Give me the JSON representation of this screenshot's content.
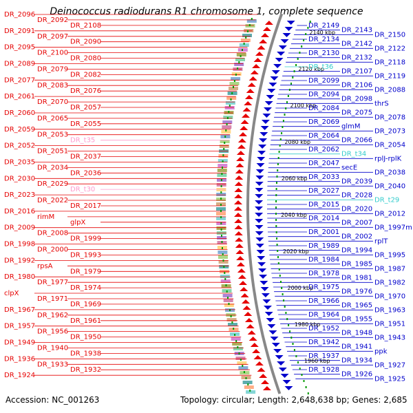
{
  "title": "Deinococcus radiodurans R1 chromosome 1, complete sequence",
  "accession_label": "Accession: NC_001263",
  "topology_label": "Topology: circular; Length: 2,648,638 bp; Genes: 2,685",
  "colors": {
    "left_gene": "#e60000",
    "right_gene": "#0000cc",
    "rna_pink": "#ff99cc",
    "rna_cyan": "#33cccc",
    "backbone": "#888888",
    "tick": "#009900"
  },
  "kbp_labels": [
    "2140 kbp",
    "2120 kbp",
    "2100 kbp",
    "2080 kbp",
    "2060 kbp",
    "2040 kbp",
    "2020 kbp",
    "2000 kbp",
    "1980 kbp",
    "1960 kbp"
  ],
  "left_genes": [
    {
      "label": "DR_2096",
      "kind": "gene"
    },
    {
      "label": "DR_2092",
      "kind": "gene"
    },
    {
      "label": "DR_2108",
      "kind": "gene"
    },
    {
      "label": "DR_2091",
      "kind": "gene"
    },
    {
      "label": "DR_2097",
      "kind": "gene"
    },
    {
      "label": "DR_2090",
      "kind": "gene"
    },
    {
      "label": "DR_2095",
      "kind": "gene"
    },
    {
      "label": "DR_2100",
      "kind": "gene"
    },
    {
      "label": "DR_2080",
      "kind": "gene"
    },
    {
      "label": "DR_2089",
      "kind": "gene"
    },
    {
      "label": "DR_2079",
      "kind": "gene"
    },
    {
      "label": "DR_2082",
      "kind": "gene"
    },
    {
      "label": "DR_2077",
      "kind": "gene"
    },
    {
      "label": "DR_2083",
      "kind": "gene"
    },
    {
      "label": "DR_2076",
      "kind": "gene"
    },
    {
      "label": "DR_2061",
      "kind": "gene"
    },
    {
      "label": "DR_2070",
      "kind": "gene"
    },
    {
      "label": "DR_2057",
      "kind": "gene"
    },
    {
      "label": "DR_2060",
      "kind": "gene"
    },
    {
      "label": "DR_2065",
      "kind": "gene"
    },
    {
      "label": "DR_2055",
      "kind": "gene"
    },
    {
      "label": "DR_2059",
      "kind": "gene"
    },
    {
      "label": "DR_2053",
      "kind": "gene"
    },
    {
      "label": "DR_t35",
      "kind": "rna"
    },
    {
      "label": "DR_2052",
      "kind": "gene"
    },
    {
      "label": "DR_2051",
      "kind": "gene"
    },
    {
      "label": "DR_2037",
      "kind": "gene"
    },
    {
      "label": "DR_2035",
      "kind": "gene"
    },
    {
      "label": "DR_2034",
      "kind": "gene"
    },
    {
      "label": "DR_2036",
      "kind": "gene"
    },
    {
      "label": "DR_2030",
      "kind": "gene"
    },
    {
      "label": "DR_2029",
      "kind": "gene"
    },
    {
      "label": "DR_t30",
      "kind": "rna"
    },
    {
      "label": "DR_2023",
      "kind": "gene"
    },
    {
      "label": "DR_2022",
      "kind": "gene"
    },
    {
      "label": "DR_2017",
      "kind": "gene"
    },
    {
      "label": "DR_2016",
      "kind": "gene"
    },
    {
      "label": "rimM",
      "kind": "gene"
    },
    {
      "label": "glpX",
      "kind": "gene"
    },
    {
      "label": "DR_2009",
      "kind": "gene"
    },
    {
      "label": "DR_2008",
      "kind": "gene"
    },
    {
      "label": "DR_1999",
      "kind": "gene"
    },
    {
      "label": "DR_1998",
      "kind": "gene"
    },
    {
      "label": "DR_2000",
      "kind": "gene"
    },
    {
      "label": "DR_1993",
      "kind": "gene"
    },
    {
      "label": "DR_1992",
      "kind": "gene"
    },
    {
      "label": "rpsA",
      "kind": "gene"
    },
    {
      "label": "DR_1979",
      "kind": "gene"
    },
    {
      "label": "DR_1980",
      "kind": "gene"
    },
    {
      "label": "DR_1977",
      "kind": "gene"
    },
    {
      "label": "DR_1974",
      "kind": "gene"
    },
    {
      "label": "clpX",
      "kind": "gene"
    },
    {
      "label": "DR_1971",
      "kind": "gene"
    },
    {
      "label": "DR_1969",
      "kind": "gene"
    },
    {
      "label": "DR_1967",
      "kind": "gene"
    },
    {
      "label": "DR_1962",
      "kind": "gene"
    },
    {
      "label": "DR_1961",
      "kind": "gene"
    },
    {
      "label": "DR_1957",
      "kind": "gene"
    },
    {
      "label": "DR_1956",
      "kind": "gene"
    },
    {
      "label": "DR_1950",
      "kind": "gene"
    },
    {
      "label": "DR_1949",
      "kind": "gene"
    },
    {
      "label": "DR_1940",
      "kind": "gene"
    },
    {
      "label": "DR_1938",
      "kind": "gene"
    },
    {
      "label": "DR_1936",
      "kind": "gene"
    },
    {
      "label": "DR_1933",
      "kind": "gene"
    },
    {
      "label": "DR_1932",
      "kind": "gene"
    },
    {
      "label": "DR_1924",
      "kind": "gene"
    }
  ],
  "right_genes": [
    {
      "label": "DR_2149",
      "kind": "gene"
    },
    {
      "label": "DR_2143",
      "kind": "gene"
    },
    {
      "label": "DR_2150",
      "kind": "gene"
    },
    {
      "label": "DR_2134",
      "kind": "gene"
    },
    {
      "label": "DR_2142",
      "kind": "gene"
    },
    {
      "label": "DR_2122",
      "kind": "gene"
    },
    {
      "label": "DR_2130",
      "kind": "gene"
    },
    {
      "label": "DR_2132",
      "kind": "gene"
    },
    {
      "label": "DR_2118",
      "kind": "gene"
    },
    {
      "label": "DR_t36",
      "kind": "rna"
    },
    {
      "label": "DR_2107",
      "kind": "gene"
    },
    {
      "label": "DR_2119",
      "kind": "gene"
    },
    {
      "label": "DR_2099",
      "kind": "gene"
    },
    {
      "label": "DR_2106",
      "kind": "gene"
    },
    {
      "label": "DR_2088",
      "kind": "gene"
    },
    {
      "label": "DR_2094",
      "kind": "gene"
    },
    {
      "label": "DR_2098",
      "kind": "gene"
    },
    {
      "label": "thrS",
      "kind": "gene"
    },
    {
      "label": "DR_2084",
      "kind": "gene"
    },
    {
      "label": "DR_2075",
      "kind": "gene"
    },
    {
      "label": "DR_2078",
      "kind": "gene"
    },
    {
      "label": "DR_2069",
      "kind": "gene"
    },
    {
      "label": "glmM",
      "kind": "gene"
    },
    {
      "label": "DR_2073",
      "kind": "gene"
    },
    {
      "label": "DR_2064",
      "kind": "gene"
    },
    {
      "label": "DR_2066",
      "kind": "gene"
    },
    {
      "label": "DR_2054",
      "kind": "gene"
    },
    {
      "label": "DR_2062",
      "kind": "gene"
    },
    {
      "label": "DR_t34",
      "kind": "rna"
    },
    {
      "label": "rplJ-rplK",
      "kind": "gene"
    },
    {
      "label": "DR_2047",
      "kind": "gene"
    },
    {
      "label": "secE",
      "kind": "gene"
    },
    {
      "label": "DR_2038",
      "kind": "gene"
    },
    {
      "label": "DR_2033",
      "kind": "gene"
    },
    {
      "label": "DR_2039",
      "kind": "gene"
    },
    {
      "label": "DR_2040",
      "kind": "gene"
    },
    {
      "label": "DR_2027",
      "kind": "gene"
    },
    {
      "label": "DR_2028",
      "kind": "gene"
    },
    {
      "label": "DR_t29",
      "kind": "rna"
    },
    {
      "label": "DR_2015",
      "kind": "gene"
    },
    {
      "label": "DR_2020",
      "kind": "gene"
    },
    {
      "label": "DR_2012",
      "kind": "gene"
    },
    {
      "label": "DR_2014",
      "kind": "gene"
    },
    {
      "label": "DR_2007",
      "kind": "gene"
    },
    {
      "label": "DR_1997m",
      "kind": "gene"
    },
    {
      "label": "DR_2001",
      "kind": "gene"
    },
    {
      "label": "DR_2002",
      "kind": "gene"
    },
    {
      "label": "rplT",
      "kind": "gene"
    },
    {
      "label": "DR_1989",
      "kind": "gene"
    },
    {
      "label": "DR_1994",
      "kind": "gene"
    },
    {
      "label": "DR_1995",
      "kind": "gene"
    },
    {
      "label": "DR_1984",
      "kind": "gene"
    },
    {
      "label": "DR_1985",
      "kind": "gene"
    },
    {
      "label": "DR_1987",
      "kind": "gene"
    },
    {
      "label": "DR_1978",
      "kind": "gene"
    },
    {
      "label": "DR_1981",
      "kind": "gene"
    },
    {
      "label": "DR_1982",
      "kind": "gene"
    },
    {
      "label": "DR_1975",
      "kind": "gene"
    },
    {
      "label": "DR_1976",
      "kind": "gene"
    },
    {
      "label": "DR_1970",
      "kind": "gene"
    },
    {
      "label": "DR_1966",
      "kind": "gene"
    },
    {
      "label": "DR_1965",
      "kind": "gene"
    },
    {
      "label": "DR_1963",
      "kind": "gene"
    },
    {
      "label": "DR_1964",
      "kind": "gene"
    },
    {
      "label": "DR_1955",
      "kind": "gene"
    },
    {
      "label": "DR_1951",
      "kind": "gene"
    },
    {
      "label": "DR_1952",
      "kind": "gene"
    },
    {
      "label": "DR_1948",
      "kind": "gene"
    },
    {
      "label": "DR_1943",
      "kind": "gene"
    },
    {
      "label": "DR_1942",
      "kind": "gene"
    },
    {
      "label": "DR_1941",
      "kind": "gene"
    },
    {
      "label": "ppk",
      "kind": "gene"
    },
    {
      "label": "DR_1937",
      "kind": "gene"
    },
    {
      "label": "DR_1934",
      "kind": "gene"
    },
    {
      "label": "DR_1927",
      "kind": "gene"
    },
    {
      "label": "DR_1928",
      "kind": "gene"
    },
    {
      "label": "DR_1926",
      "kind": "gene"
    },
    {
      "label": "DR_1925",
      "kind": "gene"
    }
  ]
}
